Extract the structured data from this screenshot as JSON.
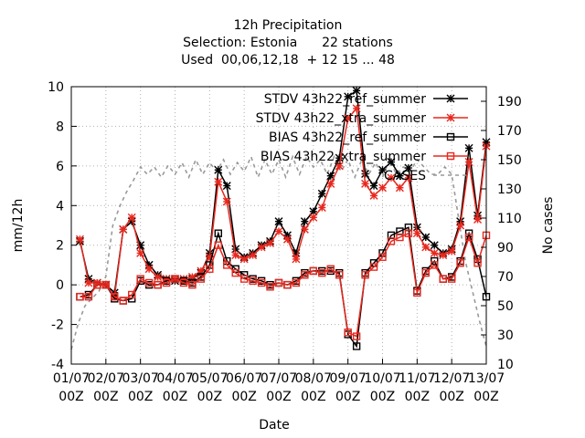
{
  "chart_data": {
    "type": "line",
    "title_lines": [
      "12h Precipitation",
      "Selection: Estonia      22 stations",
      "Used  00,06,12,18  + 12 15 ... 48"
    ],
    "xlabel": "Date",
    "ylabel": "mm/12h",
    "y2label": "No cases",
    "x_ticks": [
      "01/07\n00Z",
      "02/07\n00Z",
      "03/07\n00Z",
      "04/07\n00Z",
      "05/07\n00Z",
      "06/07\n00Z",
      "07/07\n00Z",
      "08/07\n00Z",
      "09/07\n00Z",
      "10/07\n00Z",
      "11/07\n00Z",
      "12/07\n00Z",
      "13/07\n00Z"
    ],
    "y_ticks": [
      "-4",
      "-2",
      "0",
      "2",
      "4",
      "6",
      "8",
      "10"
    ],
    "y2_ticks": [
      "10",
      "30",
      "50",
      "70",
      "90",
      "110",
      "130",
      "150",
      "170",
      "190"
    ],
    "xlim": [
      0,
      12
    ],
    "ylim": [
      -4,
      10
    ],
    "y2lim": [
      10,
      200
    ],
    "grid": true,
    "legend_position": "top-right",
    "series": [
      {
        "name": "STDV 43h22_ref_summer",
        "axis": "y",
        "color": "#000000",
        "marker": "asterisk",
        "x": [
          0.25,
          0.5,
          0.75,
          1.0,
          1.25,
          1.5,
          1.75,
          2.0,
          2.25,
          2.5,
          2.75,
          3.0,
          3.25,
          3.5,
          3.75,
          4.0,
          4.25,
          4.5,
          4.75,
          5.0,
          5.25,
          5.5,
          5.75,
          6.0,
          6.25,
          6.5,
          6.75,
          7.0,
          7.25,
          7.5,
          7.75,
          8.0,
          8.25,
          8.5,
          8.75,
          9.0,
          9.25,
          9.5,
          9.75,
          10.0,
          10.25,
          10.5,
          10.75,
          11.0,
          11.25,
          11.5,
          11.75,
          12.0
        ],
        "values": [
          2.2,
          0.3,
          0.1,
          0.0,
          -0.4,
          2.8,
          3.2,
          2.0,
          1.0,
          0.5,
          0.3,
          0.2,
          0.2,
          0.3,
          0.6,
          1.6,
          5.8,
          5.0,
          1.8,
          1.4,
          1.6,
          2.0,
          2.2,
          3.2,
          2.5,
          1.6,
          3.2,
          3.7,
          4.6,
          5.5,
          6.4,
          9.5,
          9.8,
          5.6,
          5.0,
          5.8,
          6.2,
          5.5,
          5.9,
          2.9,
          2.4,
          2.0,
          1.6,
          1.8,
          3.2,
          6.9,
          3.5,
          7.2
        ]
      },
      {
        "name": "STDV 43h22_xtra_summer",
        "axis": "y",
        "color": "#e8281e",
        "marker": "asterisk",
        "x": [
          0.25,
          0.5,
          0.75,
          1.0,
          1.25,
          1.5,
          1.75,
          2.0,
          2.25,
          2.5,
          2.75,
          3.0,
          3.25,
          3.5,
          3.75,
          4.0,
          4.25,
          4.5,
          4.75,
          5.0,
          5.25,
          5.5,
          5.75,
          6.0,
          6.25,
          6.5,
          6.75,
          7.0,
          7.25,
          7.5,
          7.75,
          8.0,
          8.25,
          8.5,
          8.75,
          9.0,
          9.25,
          9.5,
          9.75,
          10.0,
          10.25,
          10.5,
          10.75,
          11.0,
          11.25,
          11.5,
          11.75,
          12.0
        ],
        "values": [
          2.3,
          0.1,
          0.1,
          0.0,
          -0.6,
          2.8,
          3.4,
          1.6,
          0.8,
          0.4,
          0.3,
          0.3,
          0.3,
          0.4,
          0.7,
          1.4,
          5.2,
          4.2,
          1.5,
          1.3,
          1.5,
          1.9,
          2.1,
          2.7,
          2.3,
          1.3,
          2.8,
          3.4,
          3.9,
          5.1,
          6.0,
          8.4,
          8.9,
          5.1,
          4.5,
          4.9,
          5.4,
          4.9,
          5.4,
          2.6,
          1.9,
          1.6,
          1.5,
          1.7,
          3.0,
          6.2,
          3.3,
          7.0
        ]
      },
      {
        "name": "BIAS 43h22_ref_summer",
        "axis": "y",
        "color": "#000000",
        "marker": "open-square",
        "x": [
          0.25,
          0.5,
          0.75,
          1.0,
          1.25,
          1.5,
          1.75,
          2.0,
          2.25,
          2.5,
          2.75,
          3.0,
          3.25,
          3.5,
          3.75,
          4.0,
          4.25,
          4.5,
          4.75,
          5.0,
          5.25,
          5.5,
          5.75,
          6.0,
          6.25,
          6.5,
          6.75,
          7.0,
          7.25,
          7.5,
          7.75,
          8.0,
          8.25,
          8.5,
          8.75,
          9.0,
          9.25,
          9.5,
          9.75,
          10.0,
          10.25,
          10.5,
          10.75,
          11.0,
          11.25,
          11.5,
          11.75,
          12.0
        ],
        "values": [
          -0.6,
          -0.5,
          0.0,
          0.0,
          -0.7,
          -0.8,
          -0.7,
          0.2,
          0.0,
          0.0,
          0.2,
          0.3,
          0.2,
          0.1,
          0.4,
          1.0,
          2.6,
          1.2,
          0.8,
          0.5,
          0.3,
          0.2,
          0.0,
          0.1,
          0.0,
          0.2,
          0.6,
          0.7,
          0.7,
          0.7,
          0.6,
          -2.5,
          -3.1,
          0.6,
          1.1,
          1.6,
          2.5,
          2.7,
          2.9,
          -0.3,
          0.7,
          1.2,
          0.3,
          0.4,
          1.2,
          2.6,
          1.3,
          -0.6
        ]
      },
      {
        "name": "BIAS 43h22_xtra_summer",
        "axis": "y",
        "color": "#e8281e",
        "marker": "open-square",
        "x": [
          0.25,
          0.5,
          0.75,
          1.0,
          1.25,
          1.5,
          1.75,
          2.0,
          2.25,
          2.5,
          2.75,
          3.0,
          3.25,
          3.5,
          3.75,
          4.0,
          4.25,
          4.5,
          4.75,
          5.0,
          5.25,
          5.5,
          5.75,
          6.0,
          6.25,
          6.5,
          6.75,
          7.0,
          7.25,
          7.5,
          7.75,
          8.0,
          8.25,
          8.5,
          8.75,
          9.0,
          9.25,
          9.5,
          9.75,
          10.0,
          10.25,
          10.5,
          10.75,
          11.0,
          11.25,
          11.5,
          11.75,
          12.0
        ],
        "values": [
          -0.6,
          -0.6,
          0.0,
          0.0,
          -0.6,
          -0.8,
          -0.5,
          0.3,
          0.1,
          0.0,
          0.1,
          0.3,
          0.1,
          0.0,
          0.3,
          0.8,
          2.0,
          1.0,
          0.6,
          0.3,
          0.2,
          0.1,
          -0.1,
          0.1,
          0.0,
          0.1,
          0.5,
          0.7,
          0.6,
          0.8,
          0.5,
          -2.4,
          -2.6,
          0.5,
          0.9,
          1.4,
          2.2,
          2.4,
          2.6,
          -0.4,
          0.6,
          1.0,
          0.3,
          0.3,
          1.1,
          2.4,
          1.1,
          2.5
        ]
      },
      {
        "name": "CASES",
        "axis": "y2",
        "color": "#999999",
        "marker": "none",
        "dashed": true,
        "x": [
          0.0,
          0.2,
          0.4,
          0.6,
          0.8,
          1.0,
          1.2,
          1.4,
          1.6,
          1.8,
          2.0,
          2.2,
          2.4,
          2.6,
          2.8,
          3.0,
          3.2,
          3.4,
          3.6,
          3.8,
          4.0,
          4.2,
          4.4,
          4.6,
          4.8,
          5.0,
          5.2,
          5.4,
          5.6,
          5.8,
          6.0,
          6.2,
          6.4,
          6.6,
          6.8,
          7.0,
          7.2,
          7.4,
          7.6,
          7.8,
          8.0,
          8.2,
          8.4,
          8.6,
          8.8,
          9.0,
          9.2,
          9.4,
          9.6,
          9.8,
          10.0,
          10.2,
          10.4,
          10.6,
          10.8,
          11.0,
          11.2,
          11.4,
          11.6,
          11.8,
          12.0
        ],
        "values": [
          20,
          38,
          50,
          55,
          60,
          70,
          105,
          118,
          128,
          136,
          145,
          140,
          145,
          138,
          146,
          140,
          148,
          138,
          150,
          140,
          148,
          142,
          150,
          140,
          148,
          142,
          152,
          138,
          150,
          140,
          150,
          138,
          152,
          140,
          152,
          145,
          150,
          140,
          152,
          142,
          150,
          138,
          150,
          140,
          148,
          138,
          150,
          140,
          145,
          142,
          150,
          145,
          140,
          140,
          145,
          140,
          110,
          80,
          60,
          40,
          22
        ]
      }
    ]
  }
}
